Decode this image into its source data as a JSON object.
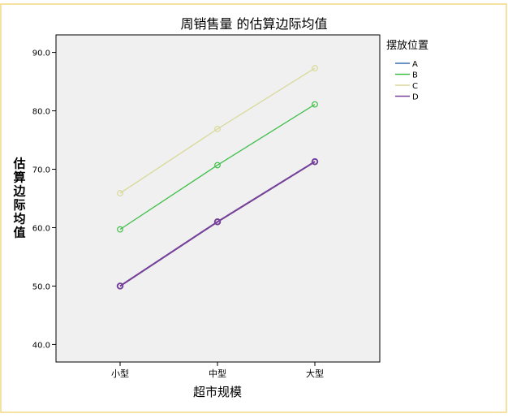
{
  "chart_data": {
    "type": "line",
    "title": "周销售量 的估算边际均值",
    "xlabel": "超市规模",
    "ylabel": "估算边际均值",
    "categories": [
      "小型",
      "中型",
      "大型"
    ],
    "ylim": [
      37.0,
      93.0
    ],
    "yticks": [
      40.0,
      50.0,
      60.0,
      70.0,
      80.0,
      90.0
    ],
    "ytick_labels": [
      "40.0",
      "50.0",
      "60.0",
      "70.0",
      "80.0",
      "90.0"
    ],
    "legend_title": "摆放位置",
    "legend_position": "right",
    "grid": false,
    "series": [
      {
        "name": "A",
        "color": "#3a6fb0",
        "values": [
          50.0,
          61.0,
          71.3
        ]
      },
      {
        "name": "B",
        "color": "#3fbf48",
        "values": [
          59.7,
          70.7,
          81.1
        ]
      },
      {
        "name": "C",
        "color": "#d8d99a",
        "values": [
          65.9,
          76.9,
          87.3
        ]
      },
      {
        "name": "D",
        "color": "#7a3f99",
        "values": [
          50.0,
          61.0,
          71.3
        ]
      }
    ],
    "colors": {
      "plot_background": "#f0f0f0",
      "frame_border": "#f5e2a0"
    }
  }
}
